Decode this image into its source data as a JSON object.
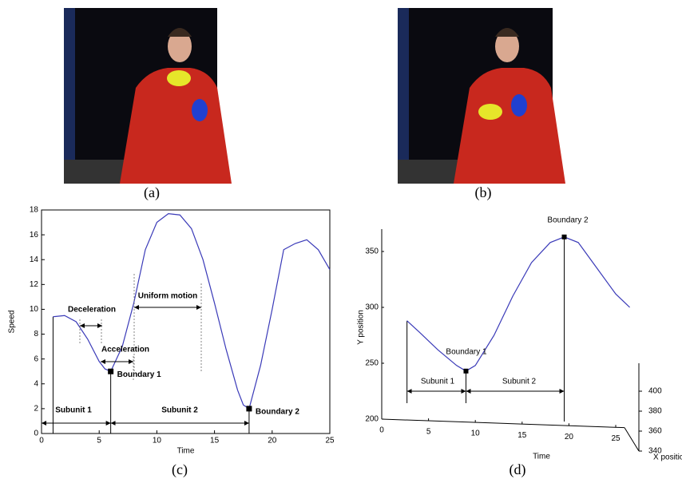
{
  "panels": [
    {
      "caption": "(a)"
    },
    {
      "caption": "(b)"
    }
  ],
  "chart_data": [
    {
      "type": "line",
      "caption": "(c)",
      "xlabel": "Time",
      "ylabel": "Speed",
      "color": "#3a3ab8",
      "x": [
        1,
        2,
        3,
        4,
        5,
        5.5,
        6,
        7,
        8,
        9,
        10,
        11,
        12,
        13,
        14,
        15,
        16,
        17,
        17.5,
        18,
        19,
        20,
        21,
        22,
        23,
        24,
        25
      ],
      "values": [
        9.4,
        9.5,
        9,
        7.6,
        5.8,
        5.2,
        5,
        7,
        10.5,
        14.8,
        17,
        17.7,
        17.6,
        16.5,
        14,
        10.5,
        6.8,
        3.5,
        2.3,
        2,
        5.5,
        10,
        14.8,
        15.3,
        15.6,
        14.8,
        13.2
      ],
      "xlim": [
        0,
        25
      ],
      "ylim": [
        0,
        18
      ],
      "xticks": [
        0,
        5,
        10,
        15,
        20,
        25
      ],
      "yticks": [
        0,
        2,
        4,
        6,
        8,
        10,
        12,
        14,
        16,
        18
      ],
      "boundaries": [
        {
          "label": "Boundary 1",
          "x": 6,
          "y": 5
        },
        {
          "label": "Boundary 2",
          "x": 18,
          "y": 2
        }
      ],
      "annotations": [
        "Deceleration",
        "Acceleration",
        "Uniform motion",
        "Subunit 1",
        "Subunit 2"
      ]
    },
    {
      "type": "line3d",
      "caption": "(d)",
      "xlabel": "Time",
      "ylabel": "Y position",
      "zlabel": "X positio",
      "color": "#3a3ab8",
      "x": [
        2.7,
        4,
        6,
        8,
        9,
        10,
        12,
        14,
        16,
        18,
        19.5,
        21,
        23,
        25,
        26.5
      ],
      "values": [
        288,
        278,
        262,
        248,
        243,
        248,
        275,
        310,
        340,
        358,
        363,
        358,
        335,
        312,
        300
      ],
      "xlim": [
        0,
        25
      ],
      "ylim": [
        200,
        370
      ],
      "xticks": [
        0,
        5,
        10,
        15,
        20,
        25
      ],
      "yticks": [
        200,
        250,
        300,
        350
      ],
      "zlim": [
        340,
        400
      ],
      "zticks": [
        340,
        360,
        380,
        400
      ],
      "boundaries": [
        {
          "label": "Boundary 1",
          "x": 9,
          "y": 243
        },
        {
          "label": "Boundary 2",
          "x": 19.5,
          "y": 363
        }
      ],
      "annotations": [
        "Subunit 1",
        "Subunit 2"
      ]
    }
  ]
}
